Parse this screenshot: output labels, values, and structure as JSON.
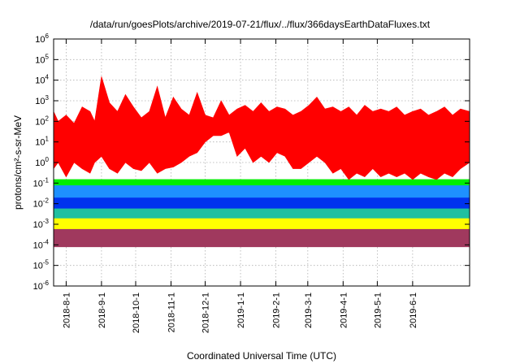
{
  "chart_data": {
    "type": "line",
    "title": "/data/run/goesPlots/archive/2019-07-21/flux/../flux/366daysEarthDataFluxes.txt",
    "xlabel": "Coordinated Universal Time (UTC)",
    "ylabel": "protons/cm²-s-sr-MeV",
    "yscale": "log",
    "ylim": [
      1e-06,
      1000000.0
    ],
    "xlim": [
      "2018-07-21",
      "2019-07-21"
    ],
    "grid": true,
    "x_ticks": [
      "2018-8-1",
      "2018-9-1",
      "2018-10-1",
      "2018-11-1",
      "2018-12-1",
      "2019-1-1",
      "2019-2-1",
      "2019-3-1",
      "2019-4-1",
      "2019-5-1",
      "2019-6-1"
    ],
    "y_ticks": [
      "10-6",
      "10-5",
      "10-4",
      "10-3",
      "10-2",
      "10-1",
      "100",
      "101",
      "102",
      "103",
      "104",
      "105",
      "106"
    ],
    "series": [
      {
        "color": "#a0395e",
        "x": [
          "2018-07-21",
          "2018-10-01",
          "2019-01-01",
          "2019-04-01",
          "2019-07-21"
        ],
        "lower": [
          8e-05,
          8e-05,
          8e-05,
          8e-05,
          8e-05
        ],
        "upper": [
          0.0006,
          0.0006,
          0.0006,
          0.0006,
          0.0006
        ]
      },
      {
        "color": "#ffff00",
        "x": [
          "2018-07-21",
          "2018-10-01",
          "2019-01-01",
          "2019-04-01",
          "2019-07-21"
        ],
        "lower": [
          0.0006,
          0.0006,
          0.0006,
          0.0006,
          0.0006
        ],
        "upper": [
          0.002,
          0.002,
          0.002,
          0.002,
          0.002
        ]
      },
      {
        "color": "#20c0a0",
        "x": [
          "2018-07-21",
          "2018-10-01",
          "2019-01-01",
          "2019-04-01",
          "2019-07-21"
        ],
        "lower": [
          0.002,
          0.002,
          0.002,
          0.002,
          0.002
        ],
        "upper": [
          0.006,
          0.006,
          0.006,
          0.006,
          0.006
        ]
      },
      {
        "color": "#0033ee",
        "x": [
          "2018-07-21",
          "2018-10-01",
          "2019-01-01",
          "2019-04-01",
          "2019-07-21"
        ],
        "lower": [
          0.006,
          0.006,
          0.006,
          0.006,
          0.006
        ],
        "upper": [
          0.02,
          0.02,
          0.02,
          0.02,
          0.02
        ]
      },
      {
        "color": "#1e90ff",
        "x": [
          "2018-07-21",
          "2018-10-01",
          "2019-01-01",
          "2019-04-01",
          "2019-07-21"
        ],
        "lower": [
          0.02,
          0.02,
          0.02,
          0.02,
          0.02
        ],
        "upper": [
          0.08,
          0.08,
          0.08,
          0.08,
          0.08
        ]
      },
      {
        "color": "#00ee00",
        "x": [
          "2018-07-21",
          "2018-10-01",
          "2019-01-01",
          "2019-04-01",
          "2019-07-21"
        ],
        "lower": [
          0.08,
          0.08,
          0.08,
          0.08,
          0.08
        ],
        "upper": [
          0.15,
          0.15,
          0.15,
          0.15,
          0.15
        ]
      },
      {
        "color": "#ff0000",
        "x": [
          "2018-07-21",
          "2018-07-25",
          "2018-08-01",
          "2018-08-08",
          "2018-08-15",
          "2018-08-22",
          "2018-08-26",
          "2018-09-01",
          "2018-09-08",
          "2018-09-15",
          "2018-09-22",
          "2018-09-29",
          "2018-10-06",
          "2018-10-13",
          "2018-10-20",
          "2018-10-27",
          "2018-11-03",
          "2018-11-10",
          "2018-11-17",
          "2018-11-24",
          "2018-12-01",
          "2018-12-08",
          "2018-12-15",
          "2018-12-22",
          "2018-12-29",
          "2019-01-05",
          "2019-01-12",
          "2019-01-19",
          "2019-01-26",
          "2019-02-02",
          "2019-02-09",
          "2019-02-16",
          "2019-02-23",
          "2019-03-02",
          "2019-03-09",
          "2019-03-16",
          "2019-03-23",
          "2019-03-30",
          "2019-04-06",
          "2019-04-13",
          "2019-04-20",
          "2019-04-27",
          "2019-05-04",
          "2019-05-11",
          "2019-05-18",
          "2019-05-25",
          "2019-06-01",
          "2019-06-08",
          "2019-06-15",
          "2019-06-22",
          "2019-06-29",
          "2019-07-06",
          "2019-07-13",
          "2019-07-21"
        ],
        "lower": [
          0.5,
          1,
          0.2,
          1,
          0.5,
          0.3,
          1,
          2,
          0.5,
          0.3,
          1,
          0.5,
          0.4,
          1,
          0.3,
          0.5,
          0.6,
          1,
          2,
          3,
          10,
          20,
          20,
          30,
          2,
          5,
          1,
          2,
          1,
          3,
          2,
          0.5,
          0.5,
          1,
          2,
          1,
          0.3,
          0.5,
          0.15,
          0.3,
          0.2,
          0.5,
          0.2,
          0.3,
          0.2,
          0.3,
          0.15,
          0.3,
          0.2,
          0.15,
          0.3,
          0.2,
          0.5,
          1
        ],
        "upper": [
          300,
          100,
          200,
          80,
          500,
          300,
          100,
          15000,
          800,
          300,
          2000,
          500,
          150,
          300,
          5000,
          150,
          1500,
          400,
          200,
          2500,
          200,
          150,
          1000,
          200,
          400,
          600,
          300,
          800,
          300,
          500,
          400,
          200,
          300,
          600,
          1500,
          400,
          500,
          300,
          500,
          200,
          600,
          300,
          400,
          300,
          500,
          200,
          300,
          400,
          200,
          300,
          500,
          200,
          400,
          300
        ]
      }
    ]
  }
}
